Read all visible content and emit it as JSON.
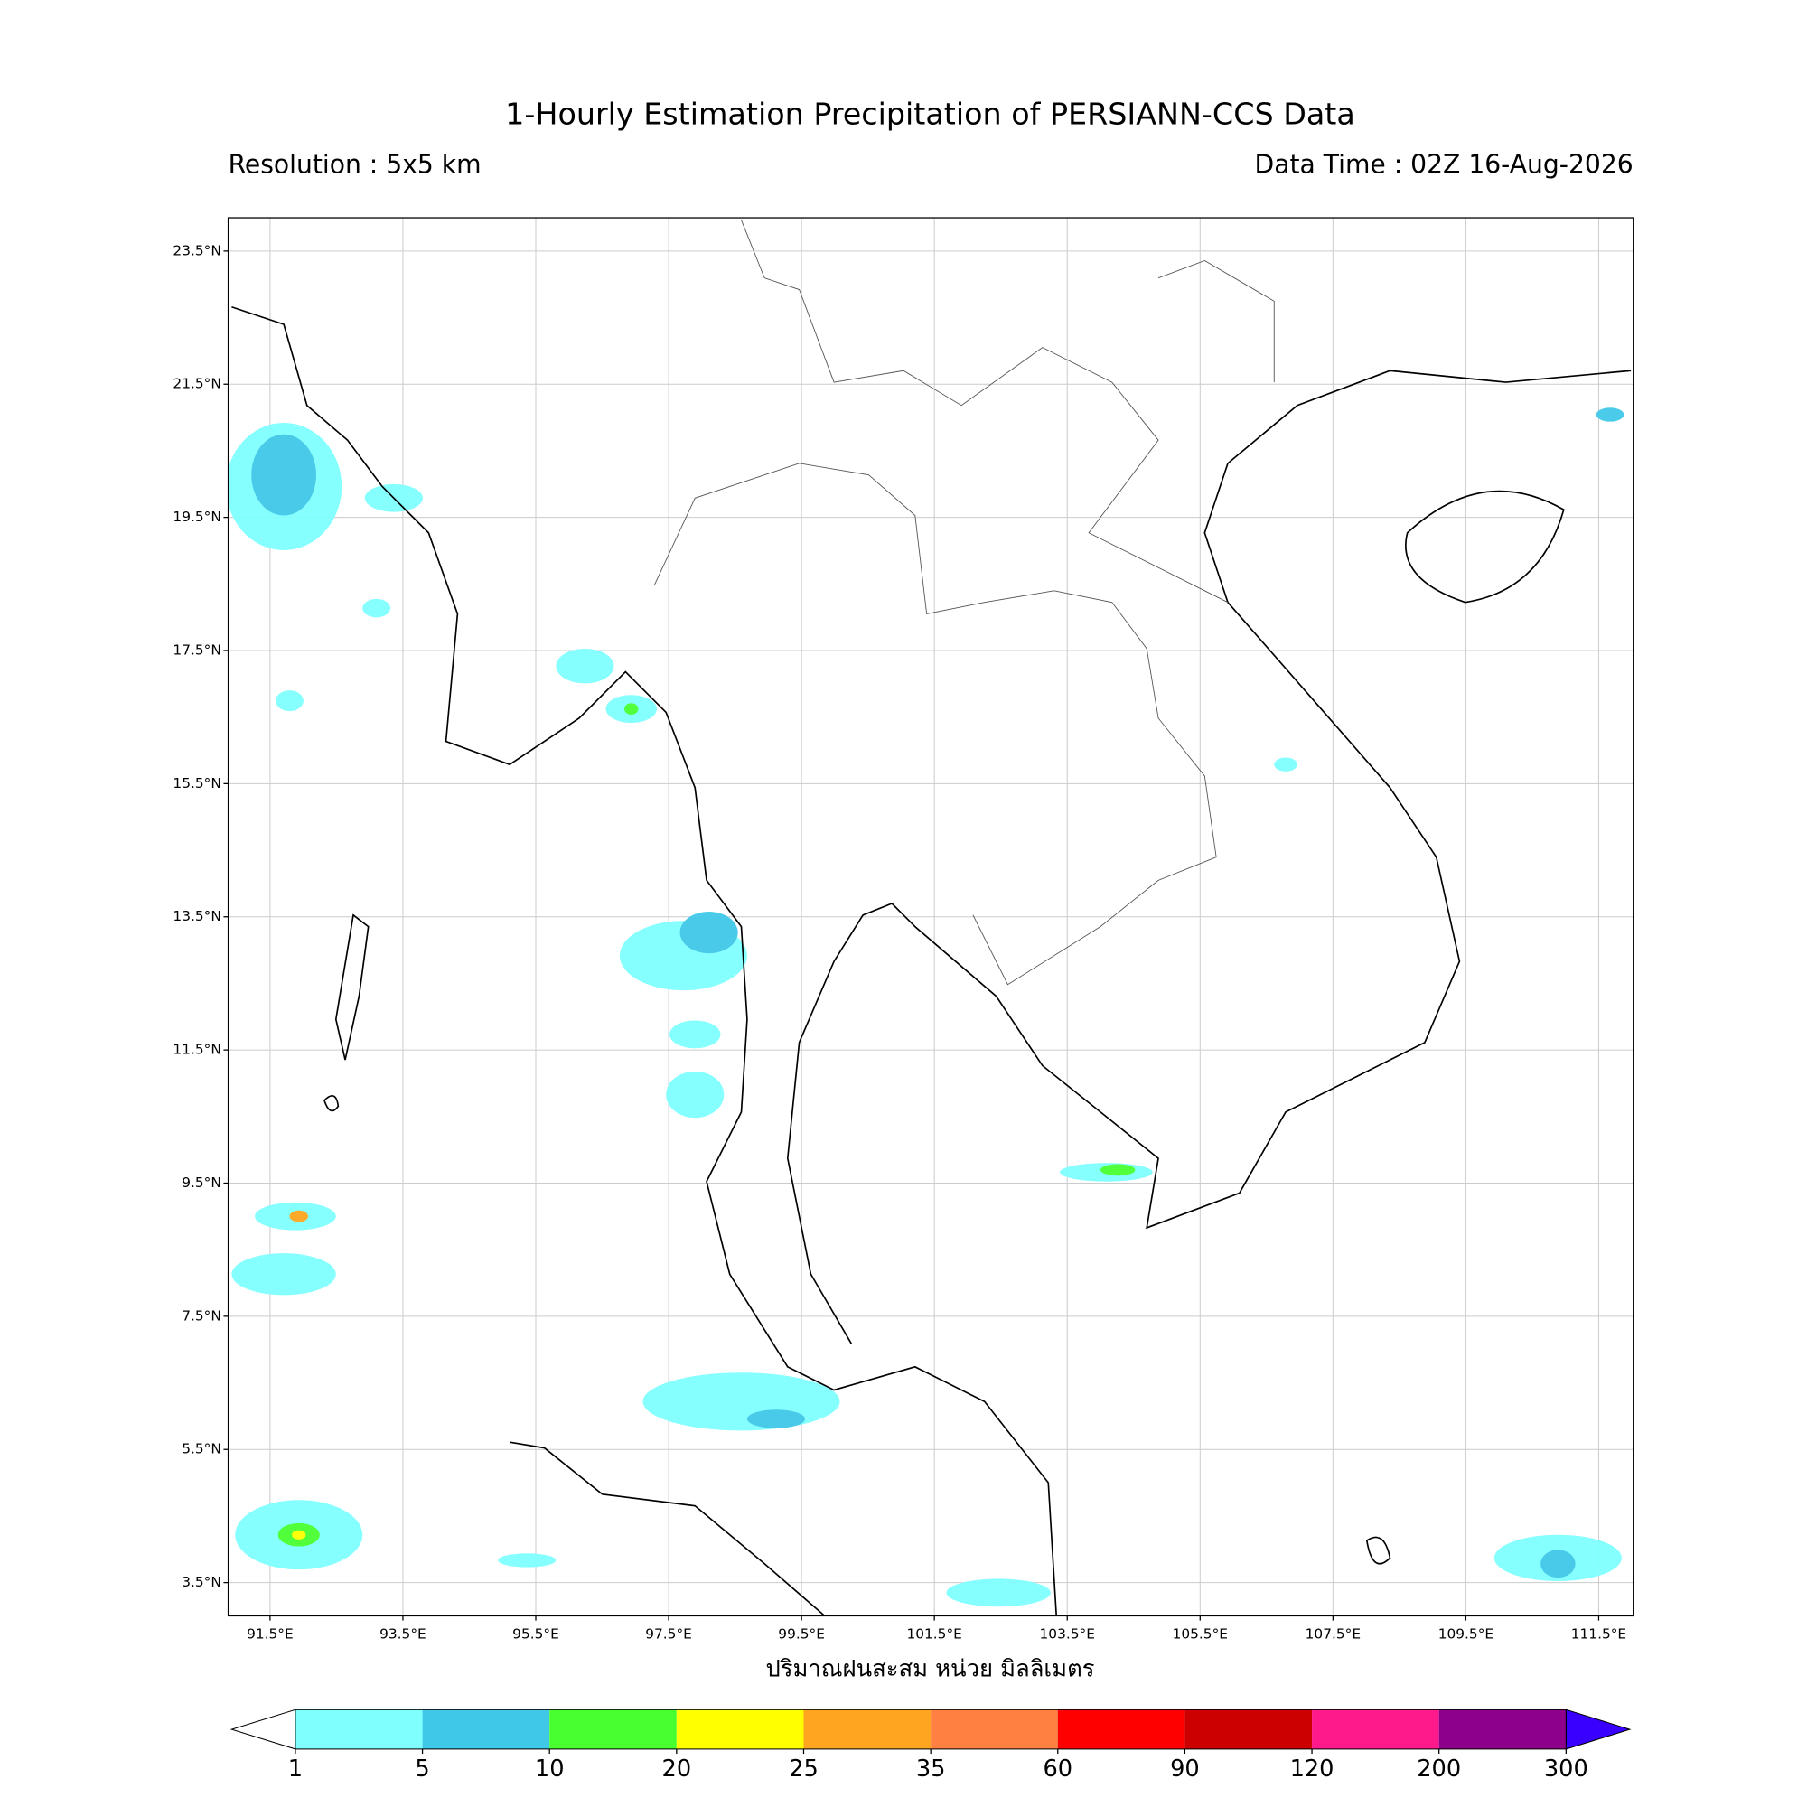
{
  "header": {
    "title": "1-Hourly Estimation Precipitation of PERSIANN-CCS Data",
    "resolution": "Resolution : 5x5 km",
    "data_time": "Data Time : 02Z 16-Aug-2026"
  },
  "map": {
    "xlim": [
      90.87,
      112.02
    ],
    "ylim": [
      3.0,
      24.0
    ],
    "lon_ticks": [
      {
        "value": 91.5,
        "label": "91.5°E"
      },
      {
        "value": 93.5,
        "label": "93.5°E"
      },
      {
        "value": 95.5,
        "label": "95.5°E"
      },
      {
        "value": 97.5,
        "label": "97.5°E"
      },
      {
        "value": 99.5,
        "label": "99.5°E"
      },
      {
        "value": 101.5,
        "label": "101.5°E"
      },
      {
        "value": 103.5,
        "label": "103.5°E"
      },
      {
        "value": 105.5,
        "label": "105.5°E"
      },
      {
        "value": 107.5,
        "label": "107.5°E"
      },
      {
        "value": 109.5,
        "label": "109.5°E"
      },
      {
        "value": 111.5,
        "label": "111.5°E"
      }
    ],
    "lat_ticks": [
      {
        "value": 23.5,
        "label": "23.5°N"
      },
      {
        "value": 21.5,
        "label": "21.5°N"
      },
      {
        "value": 19.5,
        "label": "19.5°N"
      },
      {
        "value": 17.5,
        "label": "17.5°N"
      },
      {
        "value": 15.5,
        "label": "15.5°N"
      },
      {
        "value": 13.5,
        "label": "13.5°N"
      },
      {
        "value": 11.5,
        "label": "11.5°N"
      },
      {
        "value": 9.5,
        "label": "9.5°N"
      },
      {
        "value": 7.5,
        "label": "7.5°N"
      },
      {
        "value": 5.5,
        "label": "5.5°N"
      },
      {
        "value": 3.5,
        "label": "3.5°N"
      }
    ],
    "grid": true,
    "axis_label": "ปริมาณฝนสะสม หน่วย มิลลิเมตร"
  },
  "colorbar": {
    "bounds": [
      1,
      5,
      10,
      20,
      25,
      35,
      60,
      90,
      120,
      200,
      300
    ],
    "colors": [
      "#80ffff",
      "#40c8e8",
      "#48ff30",
      "#ffff00",
      "#ffa520",
      "#ff8040",
      "#ff0000",
      "#cc0000",
      "#ff1a8c",
      "#8c008c"
    ],
    "under_color": "#ffffff",
    "over_color": "#3a00ff"
  }
}
